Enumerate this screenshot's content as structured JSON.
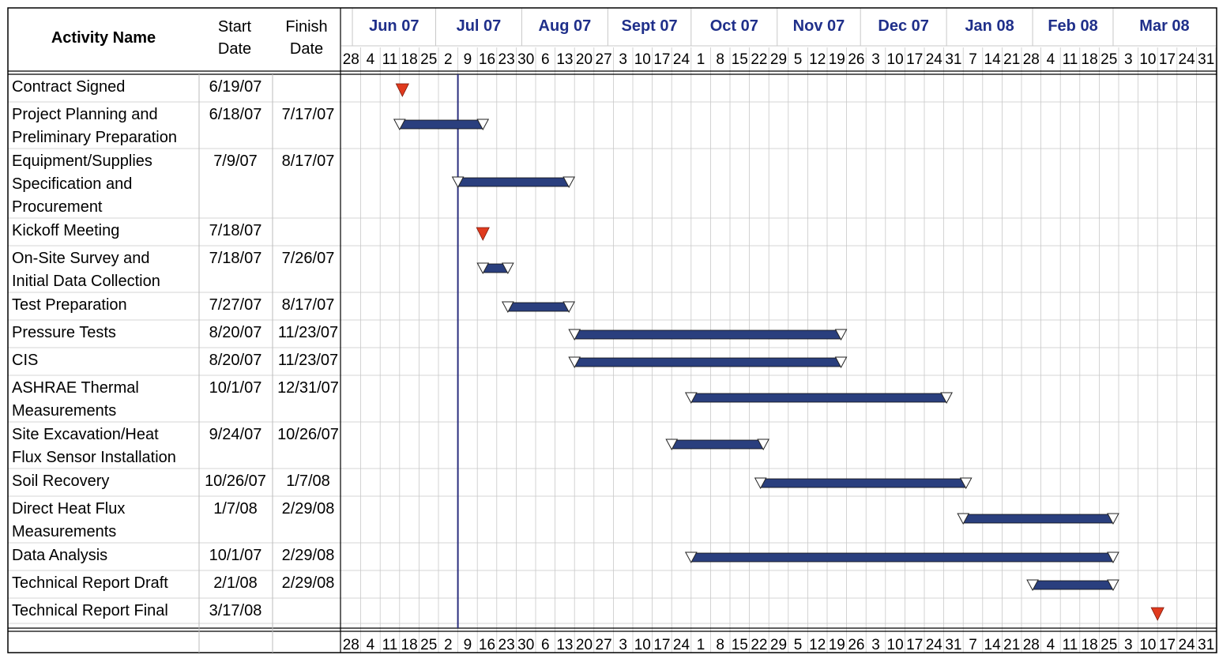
{
  "headers": {
    "activity": "Activity Name",
    "start_line1": "Start",
    "start_line2": "Date",
    "finish_line1": "Finish",
    "finish_line2": "Date"
  },
  "colors": {
    "bar": "#2a3f7e",
    "milestone": "#e03a1e",
    "month_text": "#1f2f8a",
    "today_line": "#2b2f7e",
    "grid": "#c8c8c8"
  },
  "chart_data": {
    "type": "gantt",
    "today": "2007-07-09",
    "axis_start": "2007-05-28",
    "months": [
      {
        "label": "Jun 07",
        "date": "2007-06-01"
      },
      {
        "label": "Jul 07",
        "date": "2007-07-01"
      },
      {
        "label": "Aug 07",
        "date": "2007-08-01"
      },
      {
        "label": "Sept 07",
        "date": "2007-09-01"
      },
      {
        "label": "Oct 07",
        "date": "2007-10-01"
      },
      {
        "label": "Nov 07",
        "date": "2007-11-01"
      },
      {
        "label": "Dec 07",
        "date": "2007-12-01"
      },
      {
        "label": "Jan 08",
        "date": "2008-01-01"
      },
      {
        "label": "Feb 08",
        "date": "2008-02-01"
      },
      {
        "label": "Mar 08",
        "date": "2008-03-01"
      }
    ],
    "week_labels": [
      "28",
      "4",
      "11",
      "18",
      "25",
      "2",
      "9",
      "16",
      "23",
      "30",
      "6",
      "13",
      "20",
      "27",
      "3",
      "10",
      "17",
      "24",
      "1",
      "8",
      "15",
      "22",
      "29",
      "5",
      "12",
      "19",
      "26",
      "3",
      "10",
      "17",
      "24",
      "31",
      "7",
      "14",
      "21",
      "28",
      "4",
      "11",
      "18",
      "25",
      "3",
      "10",
      "17",
      "24",
      "31"
    ],
    "tasks": [
      {
        "name": [
          "Contract Signed"
        ],
        "start": "6/19/07",
        "finish": "",
        "start_date": "2007-06-19",
        "milestone": true
      },
      {
        "name": [
          "Project Planning and",
          "Preliminary Preparation"
        ],
        "start": "6/18/07",
        "finish": "7/17/07",
        "start_date": "2007-06-18",
        "finish_date": "2007-07-17"
      },
      {
        "name": [
          "Equipment/Supplies",
          "Specification and",
          "Procurement"
        ],
        "start": "7/9/07",
        "finish": "8/17/07",
        "start_date": "2007-07-09",
        "finish_date": "2007-08-17"
      },
      {
        "name": [
          "Kickoff Meeting"
        ],
        "start": "7/18/07",
        "finish": "",
        "start_date": "2007-07-18",
        "milestone": true
      },
      {
        "name": [
          "On-Site Survey and",
          "Initial Data Collection"
        ],
        "start": "7/18/07",
        "finish": "7/26/07",
        "start_date": "2007-07-18",
        "finish_date": "2007-07-26"
      },
      {
        "name": [
          "Test Preparation"
        ],
        "start": "7/27/07",
        "finish": "8/17/07",
        "start_date": "2007-07-27",
        "finish_date": "2007-08-17"
      },
      {
        "name": [
          "Pressure Tests"
        ],
        "start": "8/20/07",
        "finish": "11/23/07",
        "start_date": "2007-08-20",
        "finish_date": "2007-11-23"
      },
      {
        "name": [
          "CIS"
        ],
        "start": "8/20/07",
        "finish": "11/23/07",
        "start_date": "2007-08-20",
        "finish_date": "2007-11-23"
      },
      {
        "name": [
          "ASHRAE Thermal",
          "Measurements"
        ],
        "start": "10/1/07",
        "finish": "12/31/07",
        "start_date": "2007-10-01",
        "finish_date": "2007-12-31"
      },
      {
        "name": [
          "Site Excavation/Heat",
          "Flux Sensor Installation"
        ],
        "start": "9/24/07",
        "finish": "10/26/07",
        "start_date": "2007-09-24",
        "finish_date": "2007-10-26"
      },
      {
        "name": [
          "Soil Recovery"
        ],
        "start": "10/26/07",
        "finish": "1/7/08",
        "start_date": "2007-10-26",
        "finish_date": "2008-01-07"
      },
      {
        "name": [
          "Direct Heat Flux",
          "Measurements"
        ],
        "start": "1/7/08",
        "finish": "2/29/08",
        "start_date": "2008-01-07",
        "finish_date": "2008-02-29"
      },
      {
        "name": [
          "Data Analysis"
        ],
        "start": "10/1/07",
        "finish": "2/29/08",
        "start_date": "2007-10-01",
        "finish_date": "2008-02-29"
      },
      {
        "name": [
          "Technical Report Draft"
        ],
        "start": "2/1/08",
        "finish": "2/29/08",
        "start_date": "2008-02-01",
        "finish_date": "2008-02-29"
      },
      {
        "name": [
          "Technical Report Final"
        ],
        "start": "3/17/08",
        "finish": "",
        "start_date": "2008-03-17",
        "milestone": true
      }
    ]
  }
}
